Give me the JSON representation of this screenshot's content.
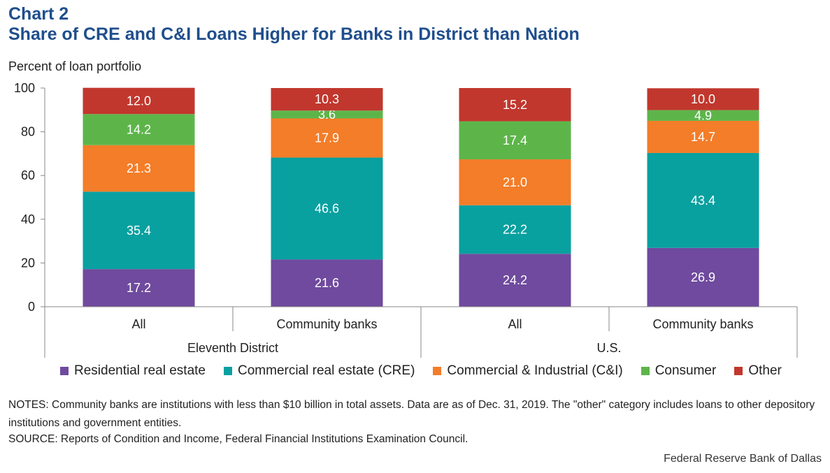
{
  "header": {
    "label": "Chart 2",
    "title": "Share of CRE and C&I Loans Higher for Banks in District than Nation"
  },
  "notes": "NOTES: Community banks are institutions with less than $10 billion in total assets. Data are as of Dec. 31, 2019. The \"other\" category includes loans to other depository institutions and government entities.",
  "source": "SOURCE: Reports of Condition and Income, Federal Financial Institutions Examination Council.",
  "credit": "Federal Reserve Bank of Dallas",
  "chart_data": {
    "type": "bar",
    "stacked": true,
    "ylabel": "Percent of loan portfolio",
    "ylim": [
      0,
      100
    ],
    "yticks": [
      0,
      20,
      40,
      60,
      80,
      100
    ],
    "categories": [
      "All",
      "Community banks",
      "All",
      "Community banks"
    ],
    "groups": [
      {
        "label": "Eleventh District",
        "categories": [
          0,
          1
        ]
      },
      {
        "label": "U.S.",
        "categories": [
          2,
          3
        ]
      }
    ],
    "series": [
      {
        "name": "Residential real estate",
        "color": "#6f4a9e",
        "values": [
          17.2,
          21.6,
          24.2,
          26.9
        ]
      },
      {
        "name": "Commercial real estate (CRE)",
        "color": "#09a0a0",
        "values": [
          35.4,
          46.6,
          22.2,
          43.4
        ]
      },
      {
        "name": "Commercial & Industrial (C&I)",
        "color": "#f37d28",
        "values": [
          21.3,
          17.9,
          21.0,
          14.7
        ]
      },
      {
        "name": "Consumer",
        "color": "#5db54a",
        "values": [
          14.2,
          3.6,
          17.4,
          4.9
        ]
      },
      {
        "name": "Other",
        "color": "#c1372d",
        "values": [
          12.0,
          10.3,
          15.2,
          10.0
        ]
      }
    ],
    "grid": false,
    "legend": "bottom"
  }
}
